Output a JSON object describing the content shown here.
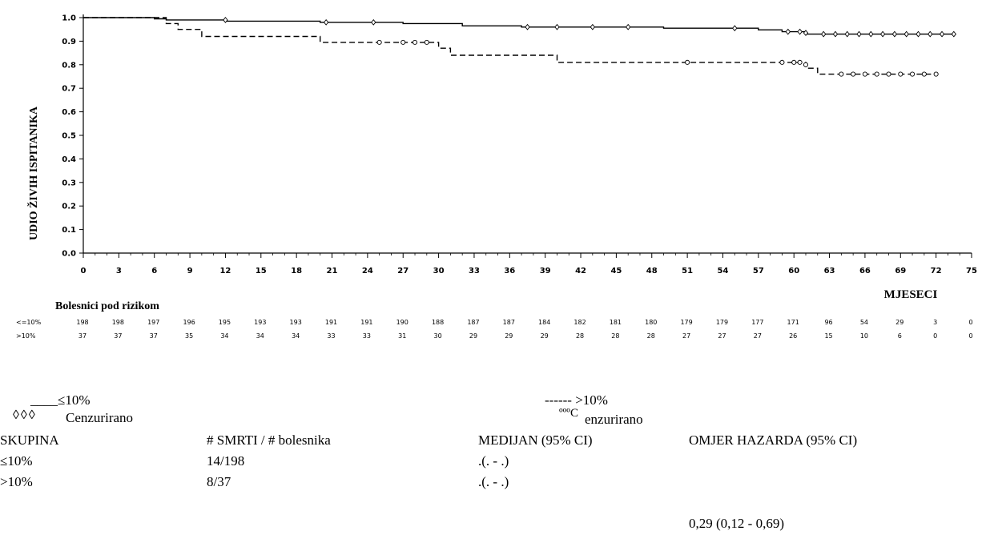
{
  "chart_data": {
    "type": "line",
    "ylabel": "UDIO ŽIVIH ISPITANIKA",
    "xlabel": "MJESECI",
    "xlim": [
      0,
      75
    ],
    "ylim": [
      0,
      1.0
    ],
    "xticks": [
      "0",
      "3",
      "6",
      "9",
      "12",
      "15",
      "18",
      "21",
      "24",
      "27",
      "30",
      "33",
      "36",
      "39",
      "42",
      "45",
      "48",
      "51",
      "54",
      "57",
      "60",
      "63",
      "66",
      "69",
      "72",
      "75"
    ],
    "yticks": [
      "0.0",
      "0.1",
      "0.2",
      "0.3",
      "0.4",
      "0.5",
      "0.6",
      "0.7",
      "0.8",
      "0.9",
      "1.0"
    ],
    "series": [
      {
        "name": "≤10%",
        "style": "solid",
        "points": [
          [
            0,
            1.0
          ],
          [
            6,
            1.0
          ],
          [
            6,
            0.995
          ],
          [
            7,
            0.995
          ],
          [
            7,
            0.99
          ],
          [
            12,
            0.99
          ],
          [
            12,
            0.985
          ],
          [
            20,
            0.985
          ],
          [
            20,
            0.98
          ],
          [
            27,
            0.98
          ],
          [
            27,
            0.975
          ],
          [
            32,
            0.975
          ],
          [
            32,
            0.965
          ],
          [
            37,
            0.965
          ],
          [
            37,
            0.96
          ],
          [
            49,
            0.96
          ],
          [
            49,
            0.955
          ],
          [
            55,
            0.955
          ],
          [
            57,
            0.955
          ],
          [
            57,
            0.948
          ],
          [
            59,
            0.948
          ],
          [
            59,
            0.94
          ],
          [
            61,
            0.94
          ],
          [
            61,
            0.93
          ],
          [
            73.5,
            0.93
          ]
        ],
        "censored": [
          [
            12,
            0.99
          ],
          [
            20.5,
            0.98
          ],
          [
            24.5,
            0.98
          ],
          [
            37.5,
            0.96
          ],
          [
            40,
            0.96
          ],
          [
            43,
            0.96
          ],
          [
            46,
            0.96
          ],
          [
            55,
            0.955
          ],
          [
            59.5,
            0.94
          ],
          [
            60.5,
            0.94
          ],
          [
            61,
            0.935
          ],
          [
            62.5,
            0.93
          ],
          [
            63.5,
            0.93
          ],
          [
            64.5,
            0.93
          ],
          [
            65.5,
            0.93
          ],
          [
            66.5,
            0.93
          ],
          [
            67.5,
            0.93
          ],
          [
            68.5,
            0.93
          ],
          [
            69.5,
            0.93
          ],
          [
            70.5,
            0.93
          ],
          [
            71.5,
            0.93
          ],
          [
            72.5,
            0.93
          ],
          [
            73.5,
            0.93
          ]
        ]
      },
      {
        "name": ">10%",
        "style": "dashed",
        "points": [
          [
            0,
            1.0
          ],
          [
            7,
            1.0
          ],
          [
            7,
            0.975
          ],
          [
            8,
            0.975
          ],
          [
            8,
            0.95
          ],
          [
            10,
            0.95
          ],
          [
            10,
            0.92
          ],
          [
            20,
            0.92
          ],
          [
            20,
            0.895
          ],
          [
            30,
            0.895
          ],
          [
            30,
            0.87
          ],
          [
            31,
            0.87
          ],
          [
            31,
            0.84
          ],
          [
            40,
            0.84
          ],
          [
            40,
            0.81
          ],
          [
            61,
            0.81
          ],
          [
            61,
            0.785
          ],
          [
            62,
            0.785
          ],
          [
            62,
            0.76
          ],
          [
            72,
            0.76
          ]
        ],
        "censored": [
          [
            25,
            0.895
          ],
          [
            27,
            0.895
          ],
          [
            28,
            0.895
          ],
          [
            29,
            0.895
          ],
          [
            51,
            0.81
          ],
          [
            59,
            0.81
          ],
          [
            60,
            0.81
          ],
          [
            60.5,
            0.81
          ],
          [
            61,
            0.8
          ],
          [
            64,
            0.76
          ],
          [
            65,
            0.76
          ],
          [
            66,
            0.76
          ],
          [
            67,
            0.76
          ],
          [
            68,
            0.76
          ],
          [
            69,
            0.76
          ],
          [
            70,
            0.76
          ],
          [
            71,
            0.76
          ],
          [
            72,
            0.76
          ]
        ]
      }
    ],
    "risk_table": {
      "title": "Bolesnici pod rizikom",
      "rows": [
        {
          "label": "<=10%",
          "values": [
            "198",
            "198",
            "197",
            "196",
            "195",
            "193",
            "193",
            "191",
            "191",
            "190",
            "188",
            "187",
            "187",
            "184",
            "182",
            "181",
            "180",
            "179",
            "179",
            "177",
            "171",
            "96",
            "54",
            "29",
            "3",
            "0"
          ]
        },
        {
          "label": ">10%",
          "values": [
            "37",
            "37",
            "37",
            "35",
            "34",
            "34",
            "34",
            "33",
            "33",
            "31",
            "30",
            "29",
            "29",
            "29",
            "28",
            "28",
            "28",
            "27",
            "27",
            "27",
            "26",
            "15",
            "10",
            "6",
            "0",
            "0"
          ]
        }
      ]
    }
  },
  "legend": {
    "solid_label": "____≤10%",
    "solid_marker": "◊◊◊",
    "solid_cens": "Cenzurirano",
    "dashed_label": "------ >10%",
    "dashed_marker": "ºººC",
    "dashed_cens": "enzurirano"
  },
  "stats_table": {
    "headers": [
      "SKUPINA",
      "# SMRTI / # bolesnika",
      "MEDIJAN (95% CI)",
      "OMJER HAZARDA (95% CI)"
    ],
    "rows": [
      [
        "≤10%",
        "14/198",
        ".(. - .)"
      ],
      [
        ">10%",
        "8/37",
        ".(. - .)"
      ]
    ],
    "hazard_ratio": "0,29 (0,12 - 0,69)"
  }
}
